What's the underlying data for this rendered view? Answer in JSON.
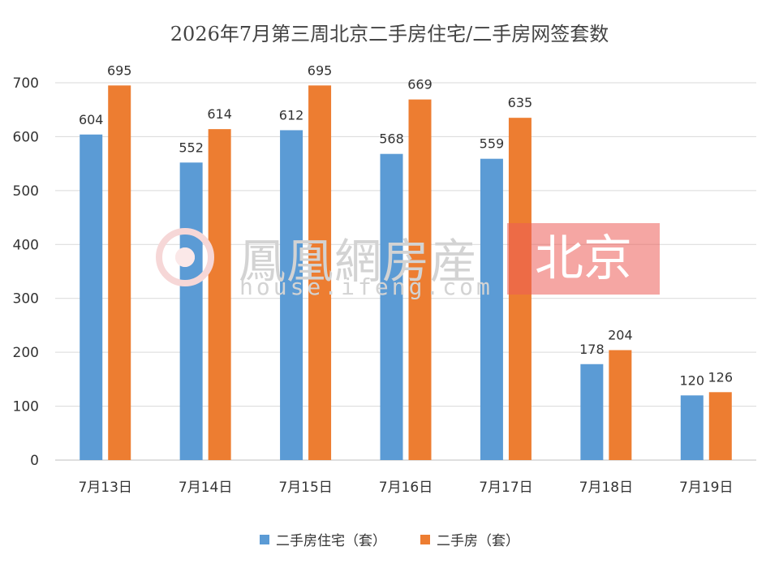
{
  "chart_data": {
    "type": "bar",
    "title": "2026年7月第三周北京二手房住宅/二手房网签套数",
    "categories": [
      "7月13日",
      "7月14日",
      "7月15日",
      "7月16日",
      "7月17日",
      "7月18日",
      "7月19日"
    ],
    "series": [
      {
        "name": "二手房住宅（套）",
        "color": "#5b9bd5",
        "values": [
          604,
          552,
          612,
          568,
          559,
          178,
          120
        ]
      },
      {
        "name": "二手房（套）",
        "color": "#ed7d31",
        "values": [
          695,
          614,
          695,
          669,
          635,
          204,
          126
        ]
      }
    ],
    "ylim": [
      0,
      700
    ],
    "yticks": [
      0,
      100,
      200,
      300,
      400,
      500,
      600,
      700
    ],
    "grid": true,
    "legend_position": "bottom",
    "data_labels": true
  },
  "watermark": {
    "brand": "鳳凰網房産",
    "url": "house.ifeng.com",
    "city": "北京"
  }
}
